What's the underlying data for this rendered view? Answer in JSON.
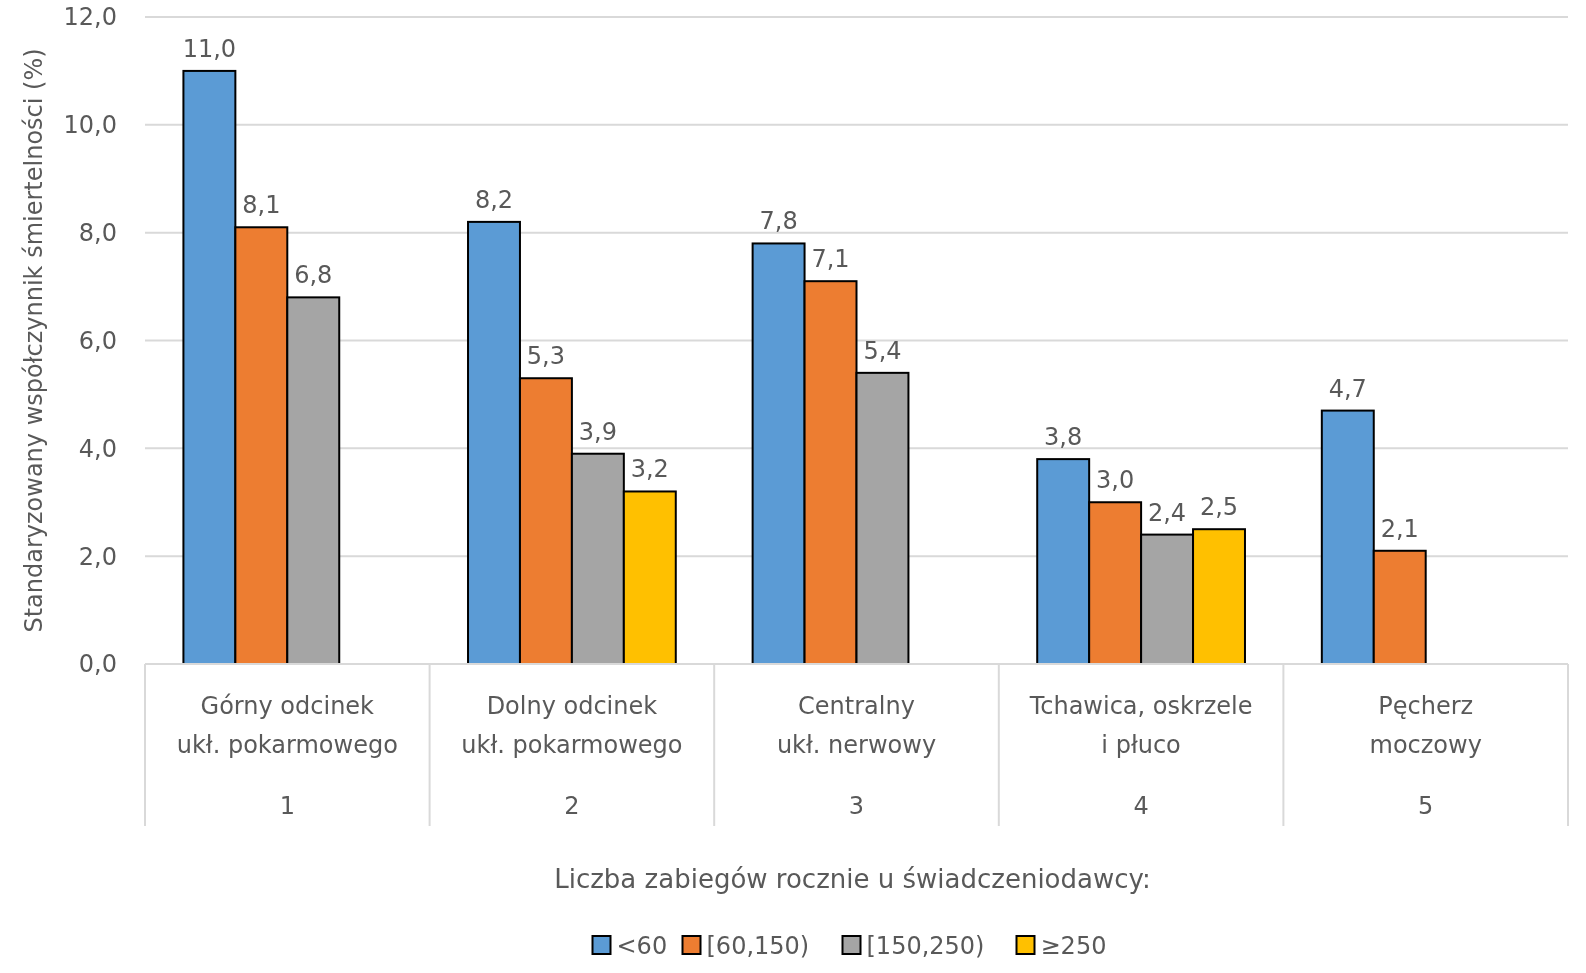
{
  "chart_data": {
    "type": "bar",
    "ylabel": "Standaryzowany współczynnik śmiertelności (%)",
    "legend_title": "Liczba zabiegów rocznie u świadczeniodawcy:",
    "categories": [
      "Górny odcinek\nukł. pokarmowego",
      "Dolny odcinek\nukł. pokarmowego",
      "Centralny\nukł. nerwowy",
      "Tchawica, oskrzele\ni płuco",
      "Pęcherz\nmoczowy"
    ],
    "series": [
      {
        "name": "<60",
        "color": "#5b9bd5",
        "values": [
          11.0,
          8.2,
          7.8,
          3.8,
          4.7
        ],
        "value_labels": [
          "11,0",
          "8,2",
          "7,8",
          "3,8",
          "4,7"
        ]
      },
      {
        "name": "[60,150)",
        "color": "#ed7d31",
        "values": [
          8.1,
          5.3,
          7.1,
          3.0,
          2.1
        ],
        "value_labels": [
          "8,1",
          "5,3",
          "7,1",
          "3,0",
          "2,1"
        ]
      },
      {
        "name": "[150,250)",
        "color": "#a5a5a5",
        "values": [
          6.8,
          3.9,
          5.4,
          2.4,
          null
        ],
        "value_labels": [
          "6,8",
          "3,9",
          "5,4",
          "2,4",
          null
        ]
      },
      {
        "name": "≥250",
        "color": "#ffc000",
        "values": [
          null,
          3.2,
          null,
          2.5,
          null
        ],
        "value_labels": [
          null,
          "3,2",
          null,
          "2,5",
          null
        ]
      }
    ],
    "annotations": [
      "1",
      "2",
      "3",
      "4",
      "5"
    ],
    "ylim": [
      0,
      12
    ],
    "yticks": [
      {
        "value": 0,
        "label": "0,0"
      },
      {
        "value": 2,
        "label": "2,0"
      },
      {
        "value": 4,
        "label": "4,0"
      },
      {
        "value": 6,
        "label": "6,0"
      },
      {
        "value": 8,
        "label": "8,0"
      },
      {
        "value": 10,
        "label": "10,0"
      },
      {
        "value": 12,
        "label": "12,0"
      }
    ],
    "grid": "y",
    "legend": "bottom"
  }
}
